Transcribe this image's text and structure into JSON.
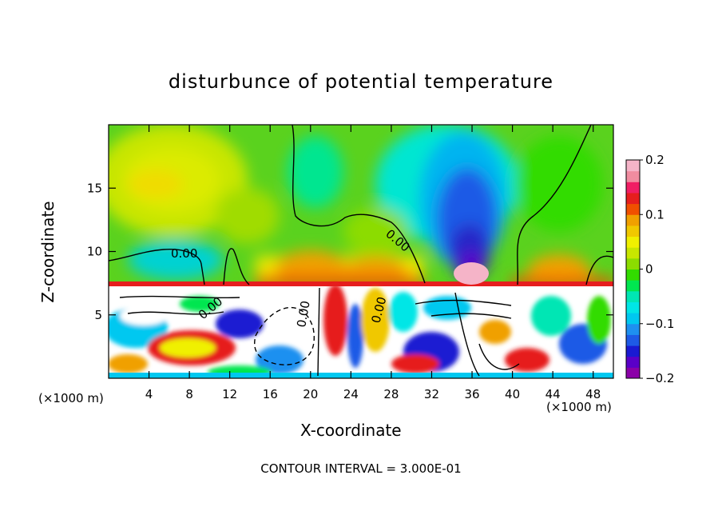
{
  "chart_data": {
    "type": "heatmap",
    "title": "disturbunce of potential temperature",
    "xlabel": "X-coordinate",
    "ylabel": "Z-coordinate",
    "x_unit": "(×1000 m)",
    "xlim": [
      0,
      50
    ],
    "ylim": [
      0,
      20
    ],
    "x_ticks": [
      4,
      8,
      12,
      16,
      20,
      24,
      28,
      32,
      36,
      40,
      44,
      48
    ],
    "y_ticks": [
      5,
      10,
      15
    ],
    "colorbar": {
      "range": [
        -0.2,
        0.2
      ],
      "tick_values": [
        0.2,
        0.1,
        0,
        -0.1,
        -0.2
      ],
      "tick_labels": [
        "0.2",
        "0.1",
        "0",
        "−0.1",
        "−0.2"
      ],
      "colors": [
        "#8b00a8",
        "#5a00c8",
        "#1a1ad2",
        "#1e5ae6",
        "#1e90f0",
        "#00c8f0",
        "#00e6e6",
        "#00e6b4",
        "#00e650",
        "#32dc00",
        "#8cdc00",
        "#c8e600",
        "#f0f000",
        "#f0c800",
        "#f0a000",
        "#f05000",
        "#e61e1e",
        "#f01e64",
        "#f08ca0",
        "#f5b4c8"
      ]
    },
    "contour_labels": [
      "0.00",
      "0.00",
      "0.00",
      "0.00",
      "0.00"
    ],
    "contour_interval_text": "CONTOUR INTERVAL = 3.000E-01"
  }
}
